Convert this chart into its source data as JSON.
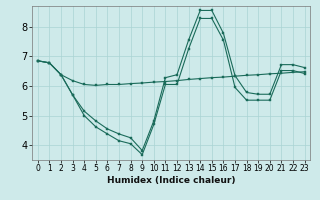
{
  "xlabel": "Humidex (Indice chaleur)",
  "background_color": "#ceeaea",
  "grid_color": "#aad4d4",
  "line_color": "#1a6b5a",
  "xlim": [
    -0.5,
    23.5
  ],
  "ylim": [
    3.5,
    8.7
  ],
  "yticks": [
    4,
    5,
    6,
    7,
    8
  ],
  "xticks": [
    0,
    1,
    2,
    3,
    4,
    5,
    6,
    7,
    8,
    9,
    10,
    11,
    12,
    13,
    14,
    15,
    16,
    17,
    18,
    19,
    20,
    21,
    22,
    23
  ],
  "line1_x": [
    0,
    1,
    2,
    3,
    4,
    5,
    6,
    7,
    8,
    9,
    10,
    11,
    12,
    13,
    14,
    15,
    16,
    17,
    18,
    19,
    20,
    21,
    22,
    23
  ],
  "line1_y": [
    6.85,
    6.78,
    6.38,
    6.18,
    6.05,
    6.02,
    6.05,
    6.05,
    6.08,
    6.1,
    6.13,
    6.15,
    6.18,
    6.22,
    6.25,
    6.28,
    6.3,
    6.33,
    6.36,
    6.38,
    6.41,
    6.43,
    6.46,
    6.48
  ],
  "line2_x": [
    0,
    1,
    2,
    3,
    4,
    5,
    6,
    7,
    8,
    9,
    10,
    11,
    12,
    13,
    14,
    15,
    16,
    17,
    18,
    19,
    20,
    21,
    22,
    23
  ],
  "line2_y": [
    6.85,
    6.78,
    6.38,
    5.7,
    5.15,
    4.82,
    4.55,
    4.38,
    4.25,
    3.82,
    4.82,
    6.28,
    6.38,
    7.55,
    8.55,
    8.55,
    7.78,
    6.35,
    5.78,
    5.72,
    5.72,
    6.72,
    6.72,
    6.62
  ],
  "line3_x": [
    0,
    1,
    2,
    3,
    4,
    5,
    6,
    7,
    8,
    9,
    10,
    11,
    12,
    13,
    14,
    15,
    16,
    17,
    18,
    19,
    20,
    21,
    22,
    23
  ],
  "line3_y": [
    6.85,
    6.78,
    6.38,
    5.7,
    5.0,
    4.62,
    4.38,
    4.15,
    4.05,
    3.68,
    4.7,
    6.05,
    6.05,
    7.25,
    8.28,
    8.28,
    7.55,
    5.95,
    5.52,
    5.52,
    5.52,
    6.52,
    6.52,
    6.42
  ],
  "xlabel_fontsize": 6.5,
  "tick_fontsize_x": 5.5,
  "tick_fontsize_y": 7
}
